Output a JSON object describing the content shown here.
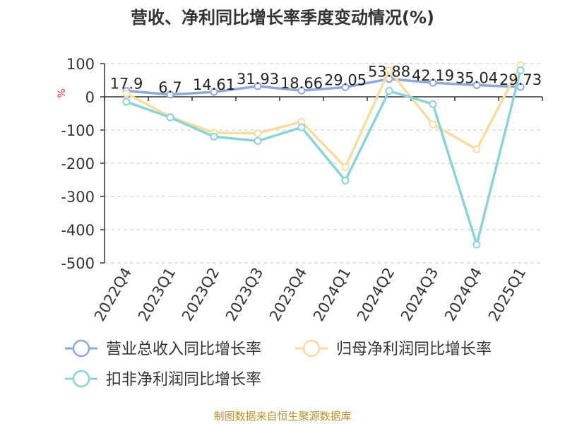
{
  "chart_data": {
    "type": "line",
    "title": "营收、净利同比增长率季度变动情况(%)",
    "ylabel": "%",
    "ylim": [
      -500,
      100
    ],
    "yticks": [
      100,
      0,
      -100,
      -200,
      -300,
      -400,
      -500
    ],
    "grid": true,
    "legend_position": "bottom",
    "categories": [
      "2022Q4",
      "2023Q1",
      "2023Q2",
      "2023Q3",
      "2023Q4",
      "2024Q1",
      "2024Q2",
      "2024Q3",
      "2024Q4",
      "2025Q1"
    ],
    "series": [
      {
        "name": "营业总收入同比增长率",
        "color": "#8fa8d8",
        "values": [
          17.9,
          6.7,
          14.61,
          31.93,
          18.66,
          29.05,
          53.88,
          42.19,
          35.04,
          29.73
        ],
        "labels": [
          "17.9",
          "6.7",
          "14.61",
          "31.93",
          "18.66",
          "29.05",
          "53.88",
          "42.19",
          "35.04",
          "29.73"
        ]
      },
      {
        "name": "归母净利润同比增长率",
        "color": "#f8dca0",
        "values": [
          10,
          -60,
          -108,
          -110,
          -75,
          -212,
          80,
          -83,
          -158,
          95
        ]
      },
      {
        "name": "扣非净利润同比增长率",
        "color": "#8ad4d8",
        "values": [
          -15,
          -62,
          -120,
          -133,
          -92,
          -252,
          18,
          -22,
          -445,
          80
        ]
      }
    ]
  },
  "source": "制图数据来自恒生聚源数据库"
}
